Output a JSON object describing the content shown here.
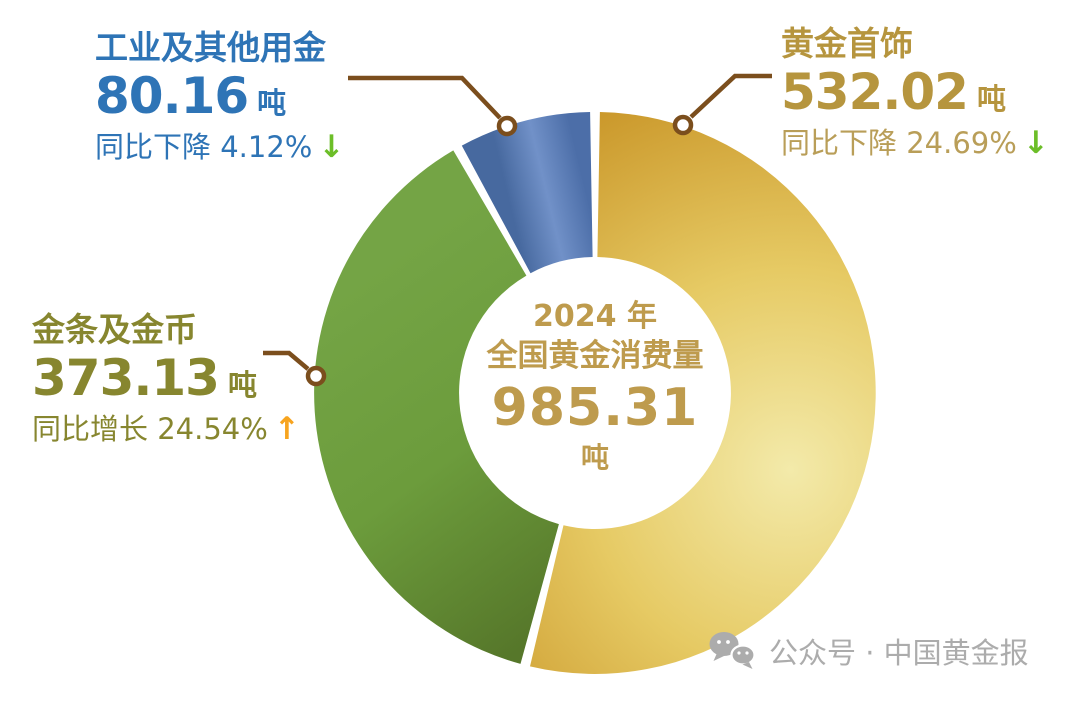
{
  "colors": {
    "vars": {
      "blue": "#2E74B6",
      "gold": "#B6953E",
      "gold-sub": "#B99E58",
      "olive": "#87862F",
      "center": "#BE9B4D",
      "arrow-down": "#6CBE28",
      "arrow-up": "#F7A41F",
      "leader": "#7B4E1D",
      "watermark": "#ACACAC"
    }
  },
  "chart_data": {
    "type": "pie",
    "donut": true,
    "title": "2024 年全国黄金消费量 985.31 吨",
    "total_value": 985.31,
    "total_unit": "吨",
    "start_angle_deg": 0,
    "direction": "clockwise",
    "legend_position": "callouts",
    "slices": [
      {
        "id": "jewelry",
        "label": "黄金首饰",
        "value": 532.02,
        "unit": "吨",
        "yoy": "同比下降 24.69%",
        "yoy_direction": "down",
        "gradient": [
          "#F3EAAA",
          "#E6CA64",
          "#CB992C"
        ]
      },
      {
        "id": "bars-coins",
        "label": "金条及金币",
        "value": 373.13,
        "unit": "吨",
        "yoy": "同比增长 24.54%",
        "yoy_direction": "up",
        "gradient": [
          "#74A445",
          "#6C9C3C",
          "#56772A"
        ]
      },
      {
        "id": "industrial",
        "label": "工业及其他用金",
        "value": 80.16,
        "unit": "吨",
        "yoy": "同比下降 4.12%",
        "yoy_direction": "down",
        "gradient": [
          "#47699F",
          "#7191C8",
          "#4C6EA8"
        ]
      }
    ]
  },
  "center": {
    "line1": "2024 年",
    "line2": "全国黄金消费量",
    "value": "985.31",
    "unit": "吨"
  },
  "callouts": {
    "industrial": {
      "title": "工业及其他用金",
      "value": "80.16",
      "unit": "吨",
      "change": "同比下降 4.12%",
      "arrow": "↓"
    },
    "jewelry": {
      "title": "黄金首饰",
      "value": "532.02",
      "unit": "吨",
      "change": "同比下降 24.69%",
      "arrow": "↓"
    },
    "bars": {
      "title": "金条及金币",
      "value": "373.13",
      "unit": "吨",
      "change": "同比增长 24.54%",
      "arrow": "↑"
    }
  },
  "watermark": {
    "text": "公众号 · 中国黄金报"
  }
}
